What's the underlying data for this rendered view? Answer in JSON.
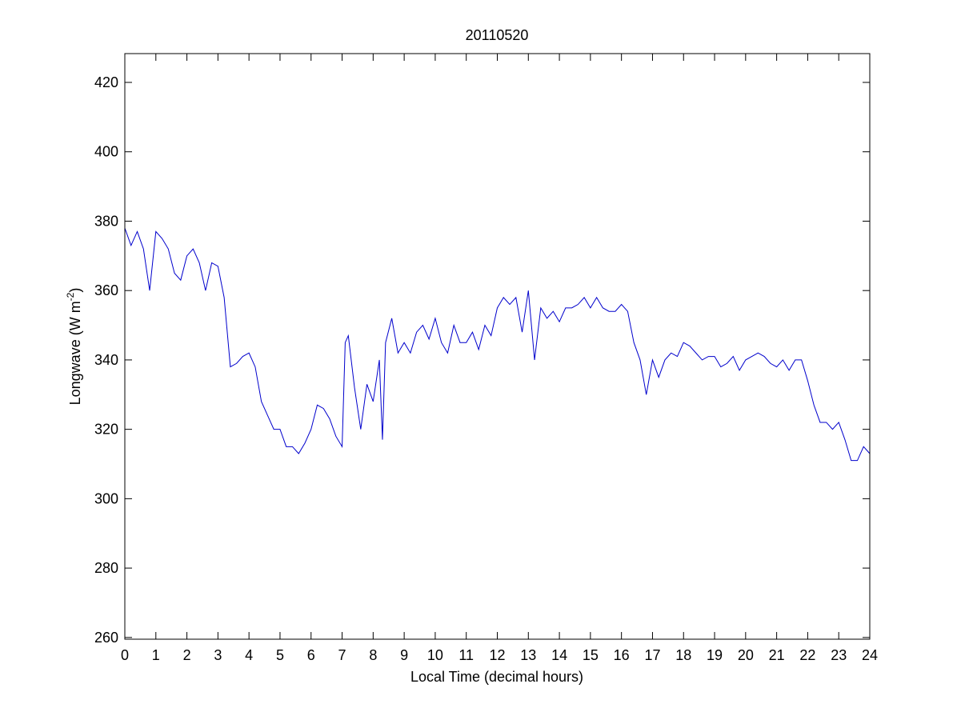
{
  "chart_data": {
    "type": "line",
    "title": "20110520",
    "xlabel": "Local Time (decimal hours)",
    "ylabel": [
      "Longwave (W m",
      "-2",
      ")"
    ],
    "color": "#0000cc",
    "xlim": [
      0,
      24
    ],
    "xticks": [
      0,
      1,
      2,
      3,
      4,
      5,
      6,
      7,
      8,
      9,
      10,
      11,
      12,
      13,
      14,
      15,
      16,
      17,
      18,
      19,
      20,
      21,
      22,
      23,
      24
    ],
    "ylim": [
      259.5,
      428.3
    ],
    "yticks": [
      260,
      280,
      300,
      320,
      340,
      360,
      380,
      400,
      420
    ],
    "x": [
      0,
      0.2,
      0.4,
      0.6,
      0.8,
      1.0,
      1.2,
      1.4,
      1.6,
      1.8,
      2.0,
      2.2,
      2.4,
      2.6,
      2.8,
      3.0,
      3.2,
      3.4,
      3.6,
      3.8,
      4.0,
      4.2,
      4.4,
      4.6,
      4.8,
      5.0,
      5.2,
      5.4,
      5.6,
      5.8,
      6.0,
      6.2,
      6.4,
      6.6,
      6.8,
      7.0,
      7.1,
      7.2,
      7.4,
      7.6,
      7.8,
      8.0,
      8.2,
      8.3,
      8.4,
      8.6,
      8.8,
      9.0,
      9.2,
      9.4,
      9.6,
      9.8,
      10.0,
      10.2,
      10.4,
      10.6,
      10.8,
      11.0,
      11.2,
      11.4,
      11.6,
      11.8,
      12.0,
      12.2,
      12.4,
      12.6,
      12.8,
      13.0,
      13.2,
      13.4,
      13.6,
      13.8,
      14.0,
      14.2,
      14.4,
      14.6,
      14.8,
      15.0,
      15.2,
      15.4,
      15.6,
      15.8,
      16.0,
      16.2,
      16.4,
      16.6,
      16.8,
      17.0,
      17.2,
      17.4,
      17.6,
      17.8,
      18.0,
      18.2,
      18.4,
      18.6,
      18.8,
      19.0,
      19.2,
      19.4,
      19.6,
      19.8,
      20.0,
      20.2,
      20.4,
      20.6,
      20.8,
      21.0,
      21.2,
      21.4,
      21.6,
      21.8,
      22.0,
      22.2,
      22.4,
      22.6,
      22.8,
      23.0,
      23.2,
      23.4,
      23.6,
      23.8,
      24.0
    ],
    "values": [
      378,
      373,
      377,
      372,
      360,
      377,
      375,
      372,
      365,
      363,
      370,
      372,
      368,
      360,
      368,
      367,
      358,
      338,
      339,
      341,
      342,
      338,
      328,
      324,
      320,
      320,
      315,
      315,
      313,
      316,
      320,
      327,
      326,
      323,
      318,
      315,
      345,
      347,
      332,
      320,
      333,
      328,
      340,
      317,
      345,
      352,
      342,
      345,
      342,
      348,
      350,
      346,
      352,
      345,
      342,
      350,
      345,
      345,
      348,
      343,
      350,
      347,
      355,
      358,
      356,
      358,
      348,
      360,
      340,
      355,
      352,
      354,
      351,
      355,
      355,
      356,
      358,
      355,
      358,
      355,
      354,
      354,
      356,
      354,
      345,
      340,
      330,
      340,
      335,
      340,
      342,
      341,
      345,
      344,
      342,
      340,
      341,
      341,
      338,
      339,
      341,
      337,
      340,
      341,
      342,
      341,
      339,
      338,
      340,
      337,
      340,
      340,
      334,
      327,
      322,
      322,
      320,
      322,
      317,
      311,
      311,
      315,
      313
    ]
  }
}
